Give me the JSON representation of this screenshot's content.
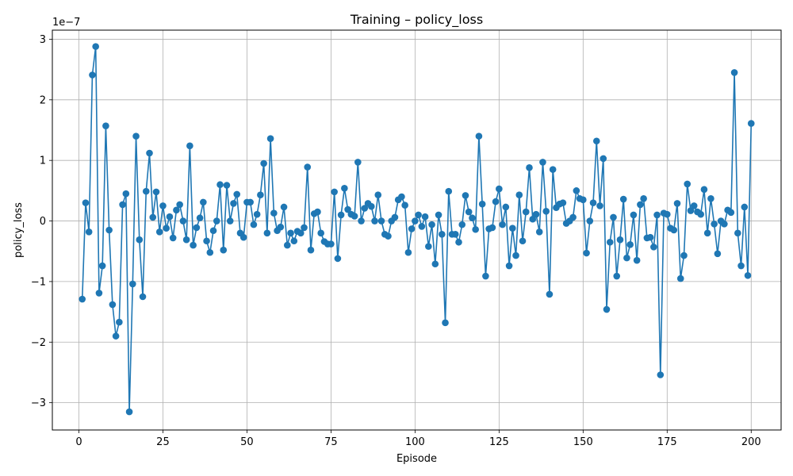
{
  "chart_data": {
    "type": "line",
    "title": "Training – policy_loss",
    "xlabel": "Episode",
    "ylabel": "policy_loss",
    "y_offset_label": "1e−7",
    "x_ticks": [
      0,
      25,
      50,
      75,
      100,
      125,
      150,
      175,
      200
    ],
    "x_tick_labels": [
      "0",
      "25",
      "50",
      "75",
      "100",
      "125",
      "150",
      "175",
      "200"
    ],
    "y_ticks": [
      -3,
      -2,
      -1,
      0,
      1,
      2,
      3
    ],
    "y_tick_labels": [
      "−3",
      "−2",
      "−1",
      "0",
      "1",
      "2",
      "3"
    ],
    "xlim": [
      -7.9,
      208.9
    ],
    "ylim": [
      -3.45,
      3.15
    ],
    "grid": true,
    "legend": false,
    "color": "#1f77b4",
    "marker": "circle",
    "x": [
      1,
      2,
      3,
      4,
      5,
      6,
      7,
      8,
      9,
      10,
      11,
      12,
      13,
      14,
      15,
      16,
      17,
      18,
      19,
      20,
      21,
      22,
      23,
      24,
      25,
      26,
      27,
      28,
      29,
      30,
      31,
      32,
      33,
      34,
      35,
      36,
      37,
      38,
      39,
      40,
      41,
      42,
      43,
      44,
      45,
      46,
      47,
      48,
      49,
      50,
      51,
      52,
      53,
      54,
      55,
      56,
      57,
      58,
      59,
      60,
      61,
      62,
      63,
      64,
      65,
      66,
      67,
      68,
      69,
      70,
      71,
      72,
      73,
      74,
      75,
      76,
      77,
      78,
      79,
      80,
      81,
      82,
      83,
      84,
      85,
      86,
      87,
      88,
      89,
      90,
      91,
      92,
      93,
      94,
      95,
      96,
      97,
      98,
      99,
      100,
      101,
      102,
      103,
      104,
      105,
      106,
      107,
      108,
      109,
      110,
      111,
      112,
      113,
      114,
      115,
      116,
      117,
      118,
      119,
      120,
      121,
      122,
      123,
      124,
      125,
      126,
      127,
      128,
      129,
      130,
      131,
      132,
      133,
      134,
      135,
      136,
      137,
      138,
      139,
      140,
      141,
      142,
      143,
      144,
      145,
      146,
      147,
      148,
      149,
      150,
      151,
      152,
      153,
      154,
      155,
      156,
      157,
      158,
      159,
      160,
      161,
      162,
      163,
      164,
      165,
      166,
      167,
      168,
      169,
      170,
      171,
      172,
      173,
      174,
      175,
      176,
      177,
      178,
      179,
      180,
      181,
      182,
      183,
      184,
      185,
      186,
      187,
      188,
      189,
      190,
      191,
      192,
      193,
      194,
      195,
      196,
      197,
      198,
      199,
      200
    ],
    "y": [
      -1.29,
      0.3,
      -0.18,
      2.41,
      2.88,
      -1.19,
      -0.74,
      1.57,
      -0.15,
      -1.38,
      -1.9,
      -1.67,
      0.27,
      0.45,
      -3.15,
      -1.04,
      1.4,
      -0.31,
      -1.25,
      0.49,
      1.12,
      0.06,
      0.48,
      -0.18,
      0.25,
      -0.12,
      0.07,
      -0.28,
      0.18,
      0.27,
      0.0,
      -0.31,
      1.24,
      -0.4,
      -0.11,
      0.05,
      0.31,
      -0.33,
      -0.52,
      -0.16,
      0.0,
      0.6,
      -0.48,
      0.59,
      0.0,
      0.29,
      0.44,
      -0.2,
      -0.27,
      0.31,
      0.31,
      -0.06,
      0.11,
      0.43,
      0.95,
      -0.2,
      1.36,
      0.13,
      -0.16,
      -0.1,
      0.23,
      -0.4,
      -0.2,
      -0.33,
      -0.17,
      -0.2,
      -0.11,
      0.89,
      -0.48,
      0.12,
      0.15,
      -0.2,
      -0.34,
      -0.38,
      -0.38,
      0.48,
      -0.62,
      0.1,
      0.54,
      0.19,
      0.11,
      0.08,
      0.97,
      0.0,
      0.21,
      0.29,
      0.24,
      0.0,
      0.43,
      0.0,
      -0.22,
      -0.25,
      0.0,
      0.06,
      0.35,
      0.4,
      0.26,
      -0.52,
      -0.13,
      0.0,
      0.1,
      -0.09,
      0.07,
      -0.42,
      -0.06,
      -0.71,
      0.1,
      -0.22,
      -1.68,
      0.49,
      -0.22,
      -0.22,
      -0.35,
      -0.06,
      0.42,
      0.15,
      0.05,
      -0.14,
      1.4,
      0.28,
      -0.91,
      -0.13,
      -0.11,
      0.32,
      0.53,
      -0.06,
      0.23,
      -0.74,
      -0.12,
      -0.57,
      0.43,
      -0.33,
      0.15,
      0.88,
      0.03,
      0.11,
      -0.18,
      0.97,
      0.16,
      -1.21,
      0.85,
      0.22,
      0.28,
      0.3,
      -0.04,
      0.0,
      0.06,
      0.5,
      0.37,
      0.35,
      -0.53,
      0.0,
      0.3,
      1.32,
      0.25,
      1.03,
      -1.46,
      -0.35,
      0.06,
      -0.91,
      -0.31,
      0.36,
      -0.61,
      -0.39,
      0.1,
      -0.65,
      0.27,
      0.37,
      -0.28,
      -0.27,
      -0.43,
      0.1,
      -2.54,
      0.13,
      0.11,
      -0.12,
      -0.15,
      0.29,
      -0.95,
      -0.57,
      0.61,
      0.17,
      0.25,
      0.15,
      0.11,
      0.52,
      -0.2,
      0.37,
      -0.05,
      -0.54,
      0.0,
      -0.05,
      0.18,
      0.14,
      2.45,
      -0.2,
      -0.74,
      0.23,
      -0.9,
      1.61
    ]
  }
}
